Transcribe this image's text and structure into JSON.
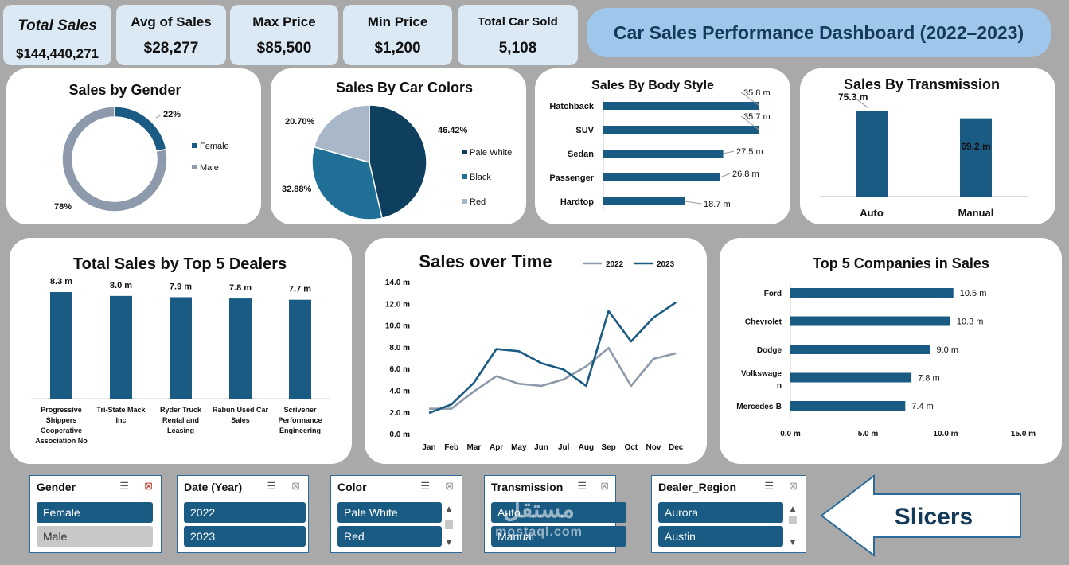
{
  "dashboard_title": "Car Sales Performance Dashboard (2022–2023)",
  "kpis": [
    {
      "title": "Total Sales",
      "value": "$144,440,271"
    },
    {
      "title": "Avg of Sales",
      "value": "$28,277"
    },
    {
      "title": "Max Price",
      "value": "$85,500"
    },
    {
      "title": "Min Price",
      "value": "$1,200"
    },
    {
      "title": "Total Car Sold",
      "value": "5,108"
    }
  ],
  "colors": {
    "primary": "#1a5b83",
    "dark": "#0f3f5f",
    "mid": "#1f6f96",
    "light": "#a8b8c8",
    "grey": "#8c9aab",
    "title_bg": "#9fc7ec",
    "kpi_bg": "#dbe9f5"
  },
  "chart_data": [
    {
      "id": "gender",
      "type": "pie",
      "variant": "donut",
      "title": "Sales by Gender",
      "categories": [
        "Female",
        "Male"
      ],
      "values": [
        22,
        78
      ],
      "labels": [
        "22%",
        "78%"
      ],
      "colors": [
        "#1a5b83",
        "#8c9aab"
      ],
      "legend": "right"
    },
    {
      "id": "colors",
      "type": "pie",
      "title": "Sales By Car Colors",
      "categories": [
        "Pale White",
        "Black",
        "Red"
      ],
      "values": [
        46.42,
        32.88,
        20.7
      ],
      "labels": [
        "46.42%",
        "32.88%",
        "20.70%"
      ],
      "colors": [
        "#0f3f5f",
        "#1f6f96",
        "#a8b8c8"
      ],
      "legend": "right"
    },
    {
      "id": "body",
      "type": "bar",
      "orientation": "horizontal",
      "title": "Sales By Body Style",
      "categories": [
        "Hatchback",
        "SUV",
        "Sedan",
        "Passenger",
        "Hardtop"
      ],
      "values": [
        35.8,
        35.7,
        27.5,
        26.8,
        18.7
      ],
      "labels": [
        "35.8 m",
        "35.7 m",
        "27.5 m",
        "26.8 m",
        "18.7 m"
      ]
    },
    {
      "id": "transmission",
      "type": "bar",
      "title": "Sales By Transmission",
      "categories": [
        "Auto",
        "Manual"
      ],
      "values": [
        75.3,
        69.2
      ],
      "labels": [
        "75.3 m",
        "69.2 m"
      ]
    },
    {
      "id": "dealers",
      "type": "bar",
      "title": "Total Sales by Top 5 Dealers",
      "categories": [
        "Progressive Shippers Cooperative Association No",
        "Tri-State Mack Inc",
        "Ryder Truck Rental and Leasing",
        "Rabun Used Car Sales",
        "Scrivener Performance Engineering"
      ],
      "category_lines": [
        [
          "Progressive",
          "Shippers",
          "Cooperative",
          "Association No"
        ],
        [
          "Tri-State Mack",
          "Inc"
        ],
        [
          "Ryder Truck",
          "Rental and",
          "Leasing"
        ],
        [
          "Rabun Used Car",
          "Sales"
        ],
        [
          "Scrivener",
          "Performance",
          "Engineering"
        ]
      ],
      "values": [
        8.3,
        8.0,
        7.9,
        7.8,
        7.7
      ],
      "labels": [
        "8.3 m",
        "8.0 m",
        "7.9 m",
        "7.8 m",
        "7.7 m"
      ]
    },
    {
      "id": "time",
      "type": "line",
      "title": "Sales over Time",
      "categories": [
        "Jan",
        "Feb",
        "Mar",
        "Apr",
        "May",
        "Jun",
        "Jul",
        "Aug",
        "Sep",
        "Oct",
        "Nov",
        "Dec"
      ],
      "series": [
        {
          "name": "2022",
          "values": [
            2.3,
            2.3,
            3.9,
            5.3,
            4.6,
            4.4,
            5.0,
            6.2,
            7.9,
            4.4,
            6.9,
            7.4
          ],
          "color": "#8c9aab"
        },
        {
          "name": "2023",
          "values": [
            1.9,
            2.7,
            4.7,
            7.8,
            7.6,
            6.5,
            5.9,
            4.4,
            11.3,
            8.5,
            10.7,
            12.1
          ],
          "color": "#1a5b83"
        }
      ],
      "yticks": [
        "14.0 m",
        "12.0 m",
        "10.0 m",
        "8.0 m",
        "6.0 m",
        "4.0 m",
        "2.0 m",
        "0.0 m"
      ],
      "ylim": [
        0,
        14
      ],
      "legend": "top-right"
    },
    {
      "id": "companies",
      "type": "bar",
      "orientation": "horizontal",
      "title": "Top 5 Companies in Sales",
      "categories": [
        "Ford",
        "Chevrolet",
        "Dodge",
        "Volkswagen",
        "Mercedes-B"
      ],
      "category_lines": [
        [
          "Ford"
        ],
        [
          "Chevrolet"
        ],
        [
          "Dodge"
        ],
        [
          "Volkswage",
          "n"
        ],
        [
          "Mercedes-B"
        ]
      ],
      "values": [
        10.5,
        10.3,
        9.0,
        7.8,
        7.4
      ],
      "labels": [
        "10.5 m",
        "10.3 m",
        "9.0 m",
        "7.8 m",
        "7.4 m"
      ],
      "xticks": [
        "0.0 m",
        "5.0 m",
        "10.0 m",
        "15.0 m"
      ],
      "xlim": [
        0,
        15
      ]
    }
  ],
  "slicers": [
    {
      "title": "Gender",
      "items": [
        {
          "label": "Female",
          "selected": true
        },
        {
          "label": "Male",
          "selected": false
        }
      ],
      "scroll": false,
      "filter_cleared": false
    },
    {
      "title": "Date (Year)",
      "items": [
        {
          "label": "2022",
          "selected": true
        },
        {
          "label": "2023",
          "selected": true
        }
      ],
      "scroll": false,
      "filter_cleared": true
    },
    {
      "title": "Color",
      "items": [
        {
          "label": "Pale White",
          "selected": true
        },
        {
          "label": "Red",
          "selected": true
        }
      ],
      "scroll": true,
      "filter_cleared": true
    },
    {
      "title": "Transmission",
      "items": [
        {
          "label": "Auto",
          "selected": true
        },
        {
          "label": "Manual",
          "selected": true
        }
      ],
      "scroll": false,
      "filter_cleared": true
    },
    {
      "title": "Dealer_Region",
      "items": [
        {
          "label": "Aurora",
          "selected": true
        },
        {
          "label": "Austin",
          "selected": true
        }
      ],
      "scroll": true,
      "filter_cleared": true
    }
  ],
  "slicers_callout": "Slicers",
  "watermark": {
    "arabic": "مستقل",
    "latin": "mostaql.com"
  }
}
